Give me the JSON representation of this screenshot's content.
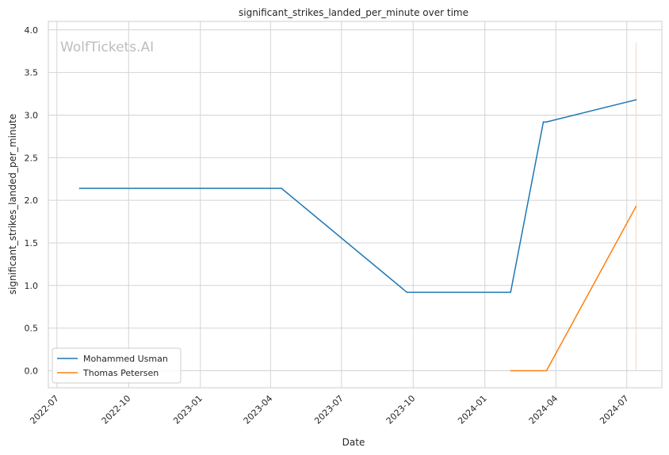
{
  "chart_data": {
    "type": "line",
    "title": "significant_strikes_landed_per_minute over time",
    "xlabel": "Date",
    "ylabel": "significant_strikes_landed_per_minute",
    "watermark": "WolfTickets.AI",
    "x_ticks": [
      "2022-07",
      "2022-10",
      "2023-01",
      "2023-04",
      "2023-07",
      "2023-10",
      "2024-01",
      "2024-04",
      "2024-07"
    ],
    "y_ticks": [
      0.0,
      0.5,
      1.0,
      1.5,
      2.0,
      2.5,
      3.0,
      3.5,
      4.0
    ],
    "y_tick_labels": [
      "0.0",
      "0.5",
      "1.0",
      "1.5",
      "2.0",
      "2.5",
      "3.0",
      "3.5",
      "4.0"
    ],
    "xlim": [
      "2022-06-20",
      "2024-08-15"
    ],
    "ylim": [
      -0.2,
      4.1
    ],
    "grid": true,
    "legend_position": "lower-left",
    "series": [
      {
        "name": "Mohammed Usman",
        "color": "#1f77b4",
        "points": [
          {
            "x": "2022-07-30",
            "y": 2.14
          },
          {
            "x": "2023-04-15",
            "y": 2.14
          },
          {
            "x": "2023-09-23",
            "y": 0.92
          },
          {
            "x": "2024-02-03",
            "y": 0.92
          },
          {
            "x": "2024-03-16",
            "y": 2.92
          },
          {
            "x": "2024-03-20",
            "y": 2.92
          },
          {
            "x": "2024-07-13",
            "y": 3.18
          }
        ]
      },
      {
        "name": "Thomas Petersen",
        "color": "#ff7f0e",
        "points": [
          {
            "x": "2024-02-03",
            "y": 0.0
          },
          {
            "x": "2024-03-20",
            "y": 0.0
          },
          {
            "x": "2024-07-13",
            "y": 1.93
          }
        ]
      }
    ],
    "event_lines": [
      {
        "x": "2024-07-13",
        "y_from": 0.0,
        "y_to": 3.85,
        "color": "#f3d9bf"
      }
    ]
  }
}
